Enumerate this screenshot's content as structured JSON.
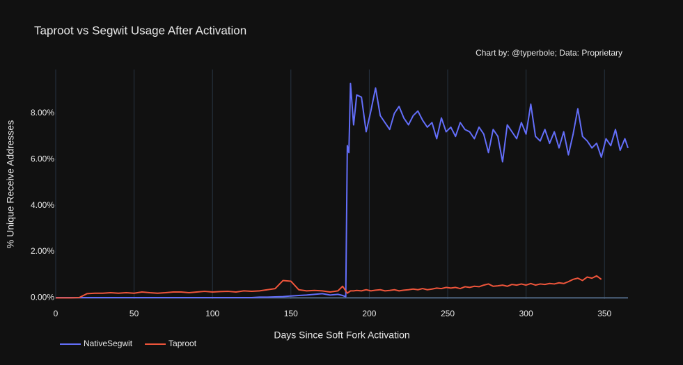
{
  "chart_data": {
    "type": "line",
    "title": "Taproot vs Segwit Usage After Activation",
    "annotation": "Chart by: @typerbole; Data: Proprietary",
    "x_label": "Days Since Soft Fork Activation",
    "y_label": "% Unique Receive Addresses",
    "x": [
      0,
      5,
      10,
      15,
      20,
      25,
      30,
      35,
      40,
      45,
      50,
      55,
      60,
      65,
      70,
      75,
      80,
      85,
      90,
      95,
      100,
      105,
      110,
      115,
      120,
      125,
      130,
      135,
      140,
      145,
      150,
      155,
      160,
      165,
      170,
      175,
      180,
      183,
      185,
      186,
      187,
      188,
      190,
      192,
      195,
      198,
      201,
      204,
      207,
      210,
      213,
      216,
      219,
      222,
      225,
      228,
      231,
      234,
      237,
      240,
      243,
      246,
      249,
      252,
      255,
      258,
      261,
      264,
      267,
      270,
      273,
      276,
      279,
      282,
      285,
      288,
      291,
      294,
      297,
      300,
      303,
      306,
      309,
      312,
      315,
      318,
      321,
      324,
      327,
      330,
      333,
      336,
      339,
      342,
      345,
      348,
      351,
      354,
      357,
      360,
      363,
      365
    ],
    "series": [
      {
        "name": "NativeSegwit",
        "color": "#636efa",
        "values": [
          0.01,
          0.01,
          0.01,
          0.01,
          0.01,
          0.01,
          0.01,
          0.01,
          0.01,
          0.01,
          0.01,
          0.01,
          0.01,
          0.01,
          0.01,
          0.01,
          0.01,
          0.01,
          0.01,
          0.01,
          0.01,
          0.01,
          0.01,
          0.01,
          0.01,
          0.01,
          0.03,
          0.03,
          0.04,
          0.05,
          0.08,
          0.1,
          0.12,
          0.15,
          0.18,
          0.12,
          0.15,
          0.1,
          0.05,
          6.6,
          6.3,
          9.3,
          7.5,
          8.8,
          8.7,
          7.2,
          8.1,
          9.1,
          7.9,
          7.6,
          7.3,
          8.0,
          8.3,
          7.8,
          7.5,
          7.9,
          8.1,
          7.7,
          7.4,
          7.6,
          6.9,
          7.8,
          7.2,
          7.4,
          7.0,
          7.6,
          7.3,
          7.2,
          6.9,
          7.4,
          7.1,
          6.3,
          7.3,
          7.0,
          5.9,
          7.5,
          7.2,
          6.9,
          7.6,
          7.1,
          8.4,
          7.0,
          6.8,
          7.3,
          6.7,
          7.2,
          6.5,
          7.2,
          6.2,
          7.1,
          8.2,
          7.0,
          6.8,
          6.5,
          6.7,
          6.1,
          6.9,
          6.6,
          7.3,
          6.4,
          6.9,
          6.5
        ]
      },
      {
        "name": "Taproot",
        "color": "#ef553b",
        "values": [
          0,
          0,
          0,
          0.01,
          0.18,
          0.2,
          0.2,
          0.22,
          0.2,
          0.22,
          0.2,
          0.25,
          0.22,
          0.2,
          0.22,
          0.25,
          0.25,
          0.22,
          0.25,
          0.28,
          0.25,
          0.27,
          0.28,
          0.25,
          0.3,
          0.28,
          0.3,
          0.35,
          0.4,
          0.75,
          0.72,
          0.35,
          0.3,
          0.32,
          0.3,
          0.25,
          0.3,
          0.5,
          0.3,
          0.2,
          0.25,
          0.3,
          0.3,
          0.32,
          0.3,
          0.35,
          0.3,
          0.33,
          0.35,
          0.3,
          0.32,
          0.35,
          0.3,
          0.33,
          0.35,
          0.38,
          0.35,
          0.4,
          0.35,
          0.38,
          0.42,
          0.4,
          0.45,
          0.42,
          0.45,
          0.4,
          0.48,
          0.45,
          0.5,
          0.48,
          0.55,
          0.6,
          0.5,
          0.52,
          0.55,
          0.5,
          0.58,
          0.55,
          0.6,
          0.55,
          0.62,
          0.55,
          0.6,
          0.58,
          0.62,
          0.6,
          0.65,
          0.62,
          0.7,
          0.8,
          0.85,
          0.75,
          0.9,
          0.85,
          0.95,
          0.8,
          null,
          null,
          null,
          null,
          null,
          null
        ]
      }
    ],
    "xlim": [
      0,
      365
    ],
    "ylim": [
      -0.05,
      9.9
    ],
    "xticks": [
      0,
      50,
      100,
      150,
      200,
      250,
      300,
      350
    ],
    "yticks": [
      {
        "value": 0,
        "label": "0.00%"
      },
      {
        "value": 2,
        "label": "2.00%"
      },
      {
        "value": 4,
        "label": "4.00%"
      },
      {
        "value": 6,
        "label": "6.00%"
      },
      {
        "value": 8,
        "label": "8.00%"
      }
    ],
    "grid": true,
    "legend": "bottom-left"
  }
}
